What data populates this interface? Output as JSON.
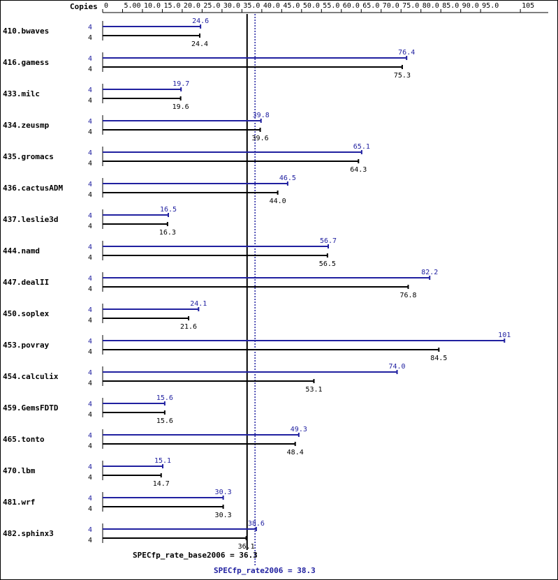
{
  "chart_data": {
    "type": "bar",
    "x_axis_label": "Copies",
    "xlim": [
      0,
      112
    ],
    "tick_values": [
      0,
      5,
      10,
      15,
      20,
      25,
      30,
      35,
      40,
      45,
      50,
      55,
      60,
      65,
      70,
      75,
      80,
      85,
      90,
      95,
      105
    ],
    "tick_labels": [
      "0",
      "5.00",
      "10.0",
      "15.0",
      "20.0",
      "25.0",
      "30.0",
      "35.0",
      "40.0",
      "45.0",
      "50.0",
      "55.0",
      "60.0",
      "65.0",
      "70.0",
      "75.0",
      "80.0",
      "85.0",
      "90.0",
      "95.0",
      "105"
    ],
    "series": [
      {
        "name": "peak",
        "color": "#2020a0"
      },
      {
        "name": "base",
        "color": "#000000"
      }
    ],
    "benchmarks": [
      {
        "name": "410.bwaves",
        "peak_copies": "4",
        "base_copies": "4",
        "peak": 24.6,
        "peak_label": "24.6",
        "base": 24.4,
        "base_label": "24.4"
      },
      {
        "name": "416.gamess",
        "peak_copies": "4",
        "base_copies": "4",
        "peak": 76.4,
        "peak_label": "76.4",
        "base": 75.3,
        "base_label": "75.3"
      },
      {
        "name": "433.milc",
        "peak_copies": "4",
        "base_copies": "4",
        "peak": 19.7,
        "peak_label": "19.7",
        "base": 19.6,
        "base_label": "19.6"
      },
      {
        "name": "434.zeusmp",
        "peak_copies": "4",
        "base_copies": "4",
        "peak": 39.8,
        "peak_label": "39.8",
        "base": 39.6,
        "base_label": "39.6"
      },
      {
        "name": "435.gromacs",
        "peak_copies": "4",
        "base_copies": "4",
        "peak": 65.1,
        "peak_label": "65.1",
        "base": 64.3,
        "base_label": "64.3"
      },
      {
        "name": "436.cactusADM",
        "peak_copies": "4",
        "base_copies": "4",
        "peak": 46.5,
        "peak_label": "46.5",
        "base": 44.0,
        "base_label": "44.0"
      },
      {
        "name": "437.leslie3d",
        "peak_copies": "4",
        "base_copies": "4",
        "peak": 16.5,
        "peak_label": "16.5",
        "base": 16.3,
        "base_label": "16.3"
      },
      {
        "name": "444.namd",
        "peak_copies": "4",
        "base_copies": "4",
        "peak": 56.7,
        "peak_label": "56.7",
        "base": 56.5,
        "base_label": "56.5"
      },
      {
        "name": "447.dealII",
        "peak_copies": "4",
        "base_copies": "4",
        "peak": 82.2,
        "peak_label": "82.2",
        "base": 76.8,
        "base_label": "76.8"
      },
      {
        "name": "450.soplex",
        "peak_copies": "4",
        "base_copies": "4",
        "peak": 24.1,
        "peak_label": "24.1",
        "base": 21.6,
        "base_label": "21.6"
      },
      {
        "name": "453.povray",
        "peak_copies": "4",
        "base_copies": "4",
        "peak": 101,
        "peak_label": "101",
        "base": 84.5,
        "base_label": "84.5"
      },
      {
        "name": "454.calculix",
        "peak_copies": "4",
        "base_copies": "4",
        "peak": 74.0,
        "peak_label": "74.0",
        "base": 53.1,
        "base_label": "53.1"
      },
      {
        "name": "459.GemsFDTD",
        "peak_copies": "4",
        "base_copies": "4",
        "peak": 15.6,
        "peak_label": "15.6",
        "base": 15.6,
        "base_label": "15.6"
      },
      {
        "name": "465.tonto",
        "peak_copies": "4",
        "base_copies": "4",
        "peak": 49.3,
        "peak_label": "49.3",
        "base": 48.4,
        "base_label": "48.4"
      },
      {
        "name": "470.lbm",
        "peak_copies": "4",
        "base_copies": "4",
        "peak": 15.1,
        "peak_label": "15.1",
        "base": 14.7,
        "base_label": "14.7"
      },
      {
        "name": "481.wrf",
        "peak_copies": "4",
        "base_copies": "4",
        "peak": 30.3,
        "peak_label": "30.3",
        "base": 30.3,
        "base_label": "30.3"
      },
      {
        "name": "482.sphinx3",
        "peak_copies": "4",
        "base_copies": "4",
        "peak": 38.6,
        "peak_label": "38.6",
        "base": 36.1,
        "base_label": "36.1"
      }
    ],
    "summary": {
      "base_value": 36.3,
      "base_label": "SPECfp_rate_base2006 = 36.3",
      "peak_value": 38.3,
      "peak_label": "SPECfp_rate2006 = 38.3"
    },
    "grid": false,
    "legend": "none"
  }
}
